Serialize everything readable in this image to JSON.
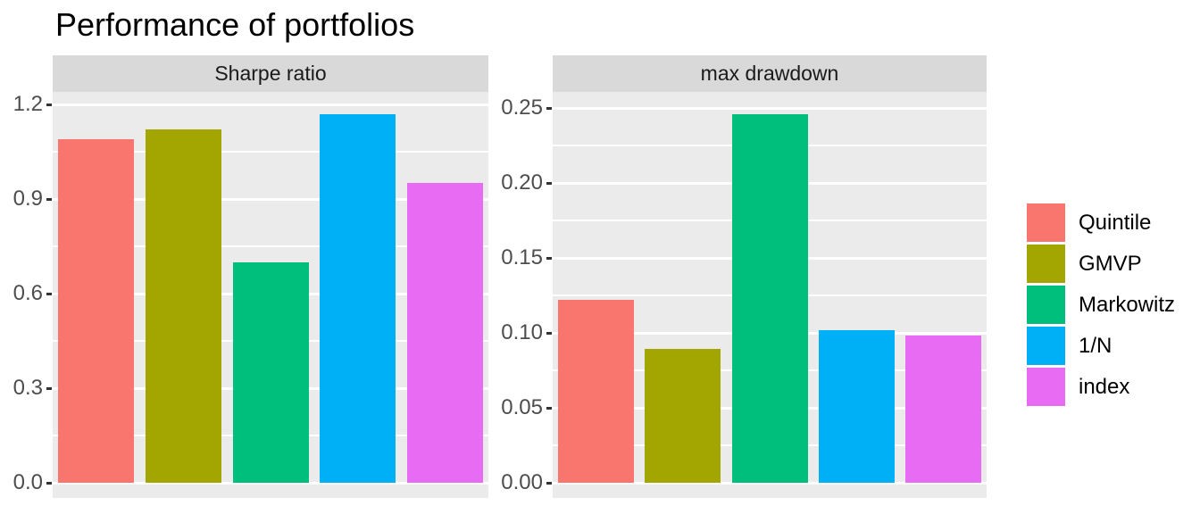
{
  "title": "Performance of portfolios",
  "palette": {
    "panel_background": "#EBEBEB",
    "strip_background": "#D9D9D9",
    "gridline": "#FFFFFF",
    "axis_text": "#4D4D4D",
    "strip_text": "#1A1A1A",
    "tick_mark": "#333333",
    "title_text": "#000000",
    "figure_background": "#FFFFFF"
  },
  "legend": {
    "items": [
      {
        "label": "Quintile",
        "color": "#F8766D"
      },
      {
        "label": "GMVP",
        "color": "#A3A500"
      },
      {
        "label": "Markowitz",
        "color": "#00BF7D"
      },
      {
        "label": "1/N",
        "color": "#00B0F6"
      },
      {
        "label": "index",
        "color": "#E76BF3"
      }
    ]
  },
  "chart_data": [
    {
      "type": "bar",
      "facet_label": "Sharpe ratio",
      "categories": [
        "Quintile",
        "GMVP",
        "Markowitz",
        "1/N",
        "index"
      ],
      "values": [
        1.09,
        1.12,
        0.7,
        1.17,
        0.95
      ],
      "bar_colors": [
        "#F8766D",
        "#A3A500",
        "#00BF7D",
        "#00B0F6",
        "#E76BF3"
      ],
      "ylim": [
        -0.06,
        1.24
      ],
      "yticks": [
        "0.0",
        "0.3",
        "0.6",
        "0.9",
        "1.2"
      ],
      "ytick_values": [
        0,
        0.3,
        0.6,
        0.9,
        1.2
      ],
      "minor_breaks": [
        0.15,
        0.45,
        0.75,
        1.05
      ],
      "grid": true,
      "xlabel": "",
      "ylabel": ""
    },
    {
      "type": "bar",
      "facet_label": "max drawdown",
      "categories": [
        "Quintile",
        "GMVP",
        "Markowitz",
        "1/N",
        "index"
      ],
      "values": [
        0.122,
        0.089,
        0.246,
        0.102,
        0.098
      ],
      "bar_colors": [
        "#F8766D",
        "#A3A500",
        "#00BF7D",
        "#00B0F6",
        "#E76BF3"
      ],
      "ylim": [
        -0.013,
        0.26
      ],
      "yticks": [
        "0.00",
        "0.05",
        "0.10",
        "0.15",
        "0.20",
        "0.25"
      ],
      "ytick_values": [
        0,
        0.05,
        0.1,
        0.15,
        0.2,
        0.25
      ],
      "minor_breaks": [
        0.025,
        0.075,
        0.125,
        0.175,
        0.225
      ],
      "grid": true,
      "xlabel": "",
      "ylabel": ""
    }
  ]
}
